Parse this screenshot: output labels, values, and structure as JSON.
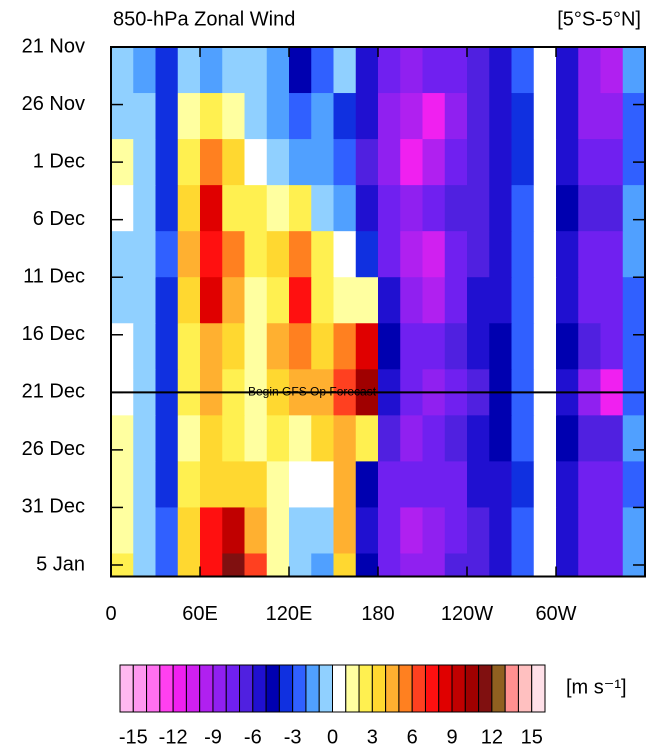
{
  "chart_data": {
    "type": "heatmap",
    "title": "850-hPa Zonal Wind",
    "subtitle": "[5°S-5°N]",
    "annotation": {
      "text": "Begin GFS Op Forecast",
      "y": 30
    },
    "xlim": [
      0,
      360
    ],
    "ylim": [
      0,
      46
    ],
    "xticks": [
      0,
      {
        "value": 60,
        "label": "60E"
      },
      {
        "value": 120,
        "label": "120E"
      },
      180,
      {
        "value": 240,
        "label": "120W"
      },
      {
        "value": 300,
        "label": "60W"
      }
    ],
    "yticks": [
      {
        "value": 0,
        "label": "21 Nov"
      },
      {
        "value": 5,
        "label": "26 Nov"
      },
      {
        "value": 10,
        "label": "1 Dec"
      },
      {
        "value": 15,
        "label": "6 Dec"
      },
      {
        "value": 20,
        "label": "11 Dec"
      },
      {
        "value": 25,
        "label": "16 Dec"
      },
      {
        "value": 30,
        "label": "21 Dec"
      },
      {
        "value": 35,
        "label": "26 Dec"
      },
      {
        "value": 40,
        "label": "31 Dec"
      },
      {
        "value": 45,
        "label": "5 Jan"
      }
    ],
    "x_edges": [
      0,
      15,
      30,
      45,
      60,
      75,
      90,
      105,
      120,
      135,
      150,
      165,
      180,
      195,
      210,
      225,
      240,
      255,
      270,
      285,
      300,
      315,
      330,
      345,
      360
    ],
    "y_edges": [
      0,
      4,
      8,
      12,
      16,
      20,
      24,
      28,
      32,
      36,
      40,
      44,
      46
    ],
    "z": [
      [
        -1,
        -2,
        -4,
        -1,
        -2,
        -1,
        -1,
        -2,
        -5,
        -3,
        -1,
        -6,
        -8,
        -9,
        -8,
        -8,
        -7,
        -6,
        -3,
        0,
        -6,
        -9,
        -10,
        -2
      ],
      [
        -1,
        -1,
        -4,
        1,
        2,
        1,
        -1,
        -2,
        -3,
        -2,
        -4,
        -6,
        -9,
        -10,
        -12,
        -9,
        -7,
        -6,
        -4,
        0,
        -6,
        -9,
        -9,
        -3
      ],
      [
        1,
        -1,
        -4,
        2,
        5,
        3,
        0,
        -1,
        -2,
        -2,
        -3,
        -7,
        -9,
        -12,
        -10,
        -8,
        -7,
        -6,
        -4,
        0,
        -6,
        -8,
        -8,
        -3
      ],
      [
        0,
        -1,
        -4,
        3,
        8,
        2,
        2,
        1,
        2,
        -1,
        -2,
        -6,
        -8,
        -9,
        -8,
        -7,
        -7,
        -6,
        -3,
        0,
        -5,
        -7,
        -7,
        -2
      ],
      [
        -1,
        -1,
        -3,
        4,
        7,
        5,
        2,
        3,
        5,
        2,
        0,
        -4,
        -8,
        -10,
        -11,
        -8,
        -7,
        -6,
        -3,
        0,
        -6,
        -8,
        -8,
        -2
      ],
      [
        -1,
        -1,
        -4,
        3,
        8,
        4,
        1,
        2,
        7,
        2,
        1,
        1,
        -6,
        -9,
        -10,
        -8,
        -6,
        -6,
        -3,
        0,
        -6,
        -8,
        -8,
        -3
      ],
      [
        0,
        -1,
        -4,
        2,
        4,
        3,
        1,
        4,
        5,
        3,
        5,
        8,
        -5,
        -8,
        -8,
        -7,
        -6,
        -5,
        -3,
        0,
        -5,
        -7,
        -8,
        -3
      ],
      [
        0,
        -1,
        -4,
        2,
        4,
        2,
        1,
        3,
        4,
        4,
        6,
        10,
        -6,
        -8,
        -9,
        -8,
        -7,
        -5,
        -3,
        0,
        -6,
        -9,
        -12,
        -3
      ],
      [
        1,
        -1,
        -4,
        1,
        3,
        2,
        1,
        2,
        1,
        3,
        4,
        2,
        -7,
        -9,
        -8,
        -7,
        -6,
        -5,
        -3,
        0,
        -5,
        -7,
        -7,
        -2
      ],
      [
        1,
        -1,
        -4,
        2,
        3,
        3,
        3,
        1,
        0,
        0,
        4,
        -5,
        -8,
        -8,
        -8,
        -8,
        -6,
        -6,
        -4,
        0,
        -6,
        -8,
        -8,
        -3
      ],
      [
        1,
        -1,
        -3,
        3,
        7,
        9,
        4,
        1,
        -1,
        -1,
        4,
        -6,
        -8,
        -10,
        -9,
        -8,
        -7,
        -6,
        -3,
        0,
        -6,
        -8,
        -8,
        -2
      ],
      [
        2,
        -1,
        -3,
        3,
        7,
        11,
        6,
        1,
        -1,
        -2,
        3,
        -5,
        -8,
        -9,
        -9,
        -7,
        -7,
        -6,
        -3,
        0,
        -6,
        -8,
        -8,
        -2
      ]
    ],
    "colorbar": {
      "units": "[m s⁻¹]",
      "levels": [
        -16,
        -15,
        -14,
        -13,
        -12,
        -11,
        -10,
        -9,
        -8,
        -7,
        -6,
        -5,
        -4,
        -3,
        -2,
        -1,
        0,
        1,
        2,
        3,
        4,
        5,
        6,
        7,
        8,
        9,
        10,
        11,
        12,
        13,
        14,
        15,
        16
      ],
      "colors": [
        "#ffb8f0",
        "#ff98f0",
        "#ff70f0",
        "#ff40f0",
        "#f020f0",
        "#d020f0",
        "#b020f0",
        "#9020f0",
        "#7020f0",
        "#5020e0",
        "#2010d0",
        "#0000b0",
        "#1030e0",
        "#3060ff",
        "#50a0ff",
        "#90d0ff",
        "#ffffff",
        "#ffffa0",
        "#fff050",
        "#ffd830",
        "#ffb030",
        "#ff8020",
        "#ff4020",
        "#ff1010",
        "#e00000",
        "#c00000",
        "#a00000",
        "#801010",
        "#906020",
        "#ff9090",
        "#ffc0c0",
        "#ffe0e8"
      ],
      "ticks": [
        -15,
        -12,
        -9,
        -6,
        -3,
        0,
        3,
        6,
        9,
        12,
        15
      ]
    }
  }
}
